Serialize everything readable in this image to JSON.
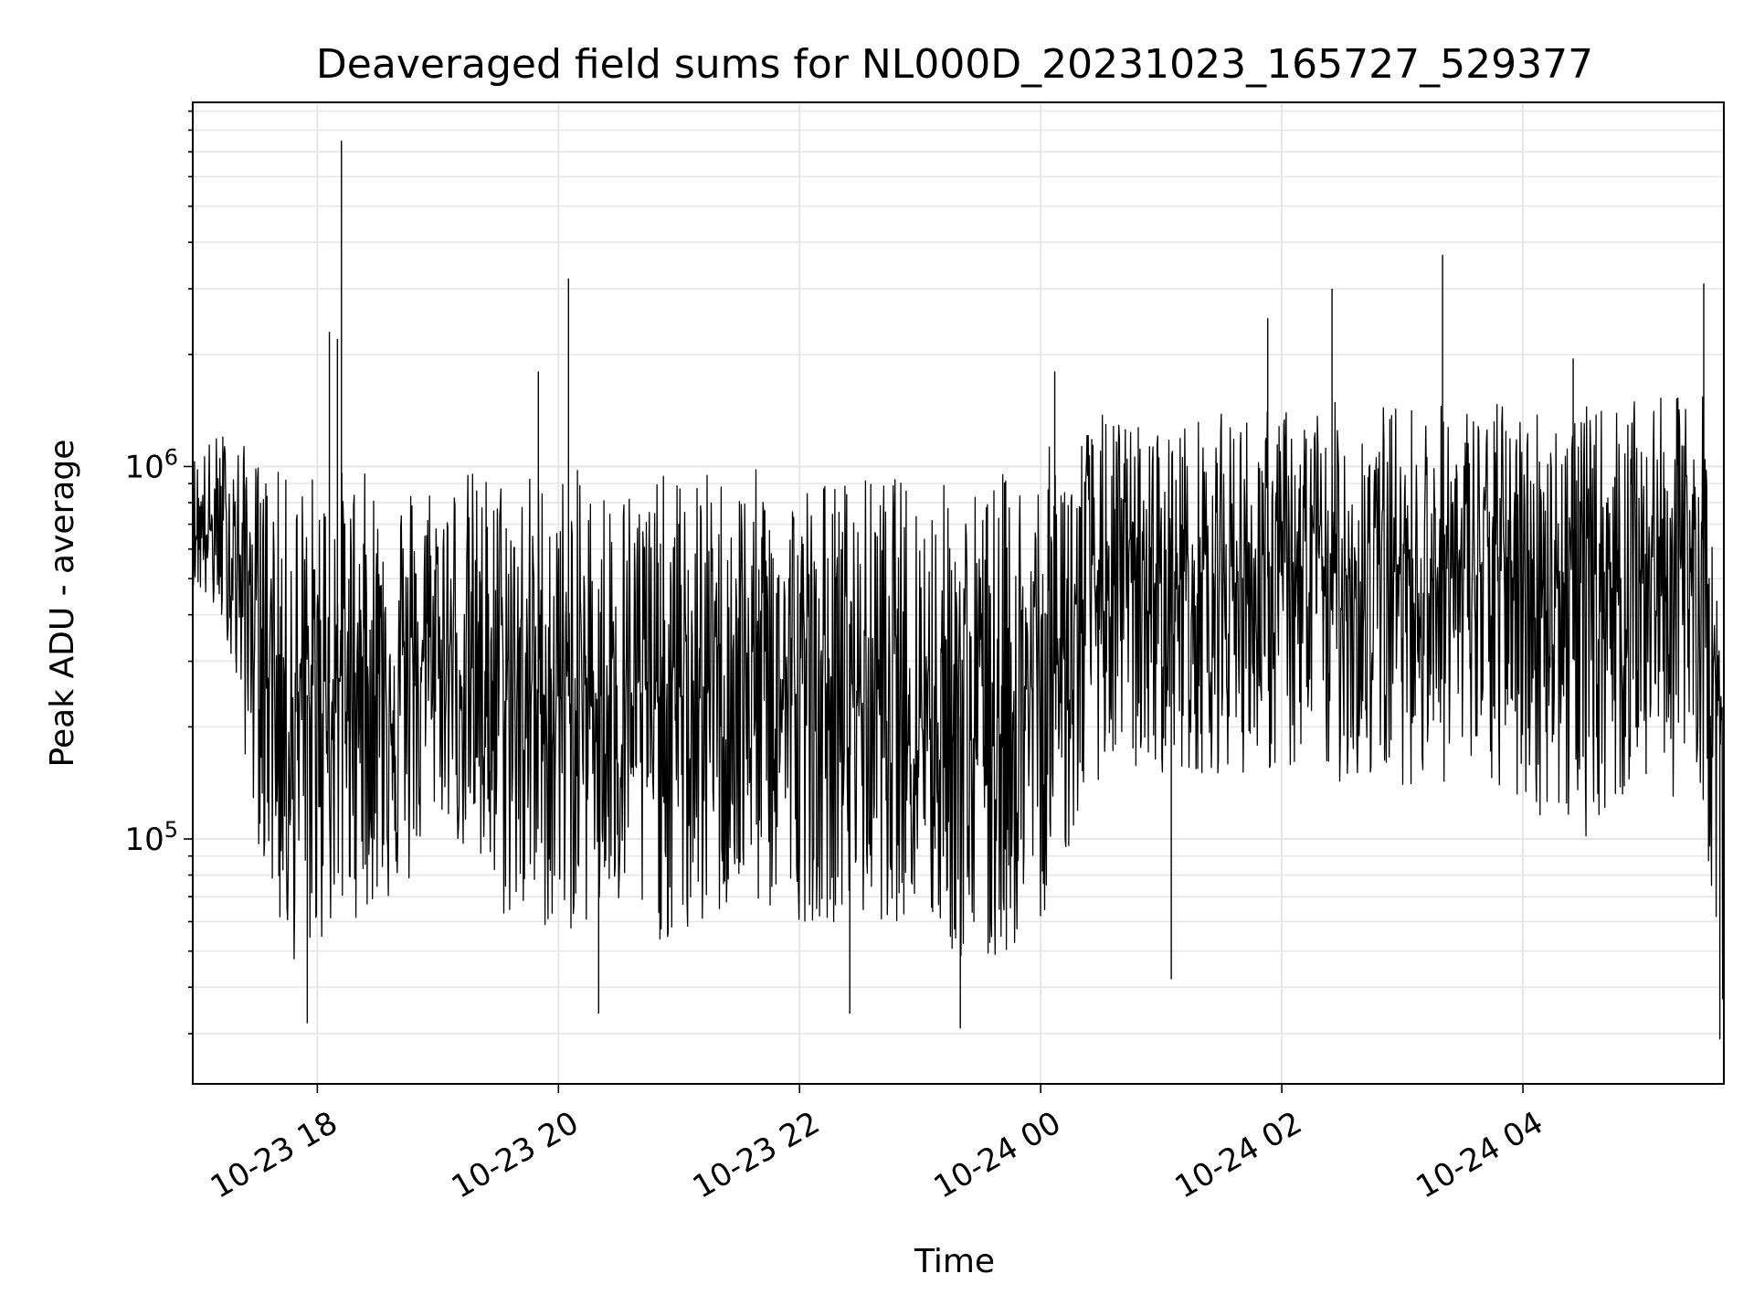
{
  "chart_data": {
    "type": "line",
    "title": "Deaveraged field sums for NL000D_20231023_165727_529377",
    "xlabel": "Time",
    "ylabel": "Peak ADU - average",
    "yscale": "log",
    "ylim": [
      22000,
      9500000
    ],
    "xlim": [
      "2023-10-23 16:58",
      "2023-10-24 05:40"
    ],
    "grid": true,
    "line_color": "#000000",
    "grid_color": "#e6e6e6",
    "x_ticks": [
      {
        "time": "2023-10-23 18:00",
        "label": "10-23 18"
      },
      {
        "time": "2023-10-23 20:00",
        "label": "10-23 20"
      },
      {
        "time": "2023-10-23 22:00",
        "label": "10-23 22"
      },
      {
        "time": "2023-10-24 00:00",
        "label": "10-24 00"
      },
      {
        "time": "2023-10-24 02:00",
        "label": "10-24 02"
      },
      {
        "time": "2023-10-24 04:00",
        "label": "10-24 04"
      }
    ],
    "y_ticks": [
      {
        "value": 100000,
        "base": "10",
        "exp": "5"
      },
      {
        "value": 1000000,
        "base": "10",
        "exp": "6"
      }
    ],
    "series": [
      {
        "x": [
          "2023-10-23 16:58",
          "2023-10-23 17:15",
          "2023-10-23 17:30",
          "2023-10-23 17:45",
          "2023-10-23 18:00",
          "2023-10-23 18:15",
          "2023-10-23 18:30",
          "2023-10-23 18:45",
          "2023-10-23 19:00",
          "2023-10-23 19:30",
          "2023-10-23 20:00",
          "2023-10-23 20:30",
          "2023-10-23 21:00",
          "2023-10-23 21:30",
          "2023-10-23 22:00",
          "2023-10-23 22:30",
          "2023-10-23 23:00",
          "2023-10-23 23:30",
          "2023-10-24 00:00",
          "2023-10-24 00:30",
          "2023-10-24 01:00",
          "2023-10-24 01:30",
          "2023-10-24 02:00",
          "2023-10-24 02:30",
          "2023-10-24 03:00",
          "2023-10-24 03:30",
          "2023-10-24 04:00",
          "2023-10-24 04:30",
          "2023-10-24 05:00",
          "2023-10-24 05:30",
          "2023-10-24 05:40"
        ],
        "low": [
          480000,
          350000,
          100000,
          45000,
          50000,
          60000,
          65000,
          70000,
          120000,
          60000,
          55000,
          60000,
          50000,
          65000,
          60000,
          60000,
          60000,
          40000,
          60000,
          150000,
          150000,
          150000,
          150000,
          140000,
          140000,
          140000,
          120000,
          100000,
          140000,
          120000,
          30000
        ],
        "typical": [
          700000,
          650000,
          450000,
          230000,
          250000,
          280000,
          300000,
          280000,
          320000,
          260000,
          240000,
          250000,
          240000,
          270000,
          250000,
          260000,
          240000,
          200000,
          260000,
          500000,
          480000,
          520000,
          500000,
          520000,
          540000,
          520000,
          560000,
          500000,
          560000,
          600000,
          150000
        ],
        "high": [
          1100000,
          1300000,
          1050000,
          950000,
          1000000,
          1000000,
          950000,
          950000,
          1000000,
          1000000,
          1000000,
          950000,
          950000,
          1000000,
          950000,
          950000,
          950000,
          900000,
          1100000,
          1400000,
          1300000,
          1400000,
          1450000,
          1500000,
          1500000,
          1500000,
          1500000,
          1450000,
          1500000,
          1600000,
          230000
        ]
      }
    ],
    "spikes": [
      {
        "time": "2023-10-23 18:06",
        "value": 2300000
      },
      {
        "time": "2023-10-23 18:10",
        "value": 2200000
      },
      {
        "time": "2023-10-23 18:12",
        "value": 7500000
      },
      {
        "time": "2023-10-23 19:50",
        "value": 1800000
      },
      {
        "time": "2023-10-23 20:05",
        "value": 3200000
      },
      {
        "time": "2023-10-24 00:07",
        "value": 1800000
      },
      {
        "time": "2023-10-24 01:53",
        "value": 2500000
      },
      {
        "time": "2023-10-24 02:25",
        "value": 3000000
      },
      {
        "time": "2023-10-24 03:20",
        "value": 3700000
      },
      {
        "time": "2023-10-24 04:25",
        "value": 1950000
      },
      {
        "time": "2023-10-24 05:30",
        "value": 3100000
      }
    ],
    "dips": [
      {
        "time": "2023-10-23 17:55",
        "value": 32000
      },
      {
        "time": "2023-10-23 20:20",
        "value": 34000
      },
      {
        "time": "2023-10-23 22:25",
        "value": 34000
      },
      {
        "time": "2023-10-23 23:20",
        "value": 31000
      },
      {
        "time": "2023-10-24 01:05",
        "value": 42000
      },
      {
        "time": "2023-10-24 05:38",
        "value": 29000
      }
    ]
  }
}
